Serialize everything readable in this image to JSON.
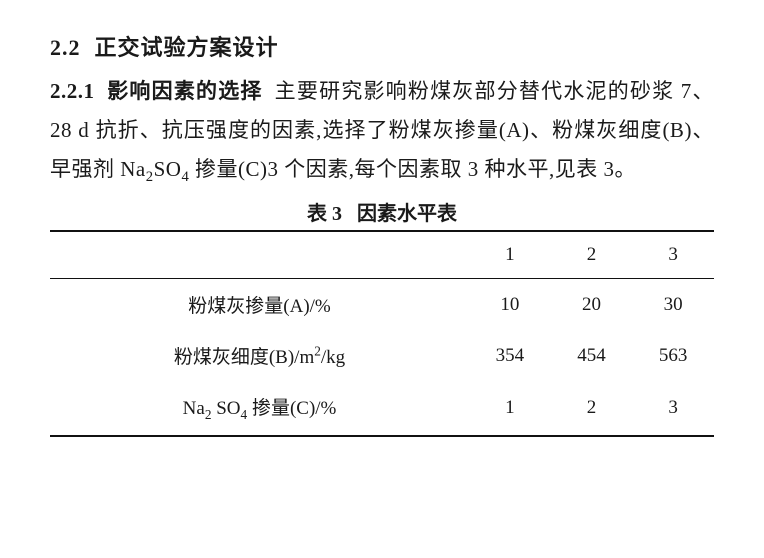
{
  "section": {
    "number": "2.2",
    "title": "正交试验方案设计"
  },
  "subsection": {
    "number": "2.2.1",
    "title": "影响因素的选择",
    "body_pre": "主要研究影响粉煤灰部分替代水泥的砂浆 7、28 d 抗折、抗压强度的因素,选择了粉煤灰掺量(A)、粉煤灰细度(B)、早强剂 Na",
    "sub1": "2",
    "body_mid": "SO",
    "sub2": "4",
    "body_post": " 掺量(C)3 个因素,每个因素取 3 种水平,见表 3。"
  },
  "table": {
    "caption_label": "表 3",
    "caption_title": "因素水平表",
    "columns": [
      "1",
      "2",
      "3"
    ],
    "rows": [
      {
        "label": "粉煤灰掺量(A)/%",
        "c1": "10",
        "c2": "20",
        "c3": "30"
      },
      {
        "label_pre": "粉煤灰细度(B)/m",
        "label_sup": "2",
        "label_post": "/kg",
        "c1": "354",
        "c2": "454",
        "c3": "563"
      },
      {
        "label_pre": "Na",
        "label_sub1": "2",
        "label_mid": " SO",
        "label_sub2": "4",
        "label_post": " 掺量(C)/%",
        "c1": "1",
        "c2": "2",
        "c3": "3"
      }
    ]
  },
  "style": {
    "font_body_size": 21,
    "font_table_size": 19,
    "rule_heavy": 2.5,
    "rule_light": 1.2,
    "text_color": "#1a1a1a",
    "background": "#ffffff"
  }
}
